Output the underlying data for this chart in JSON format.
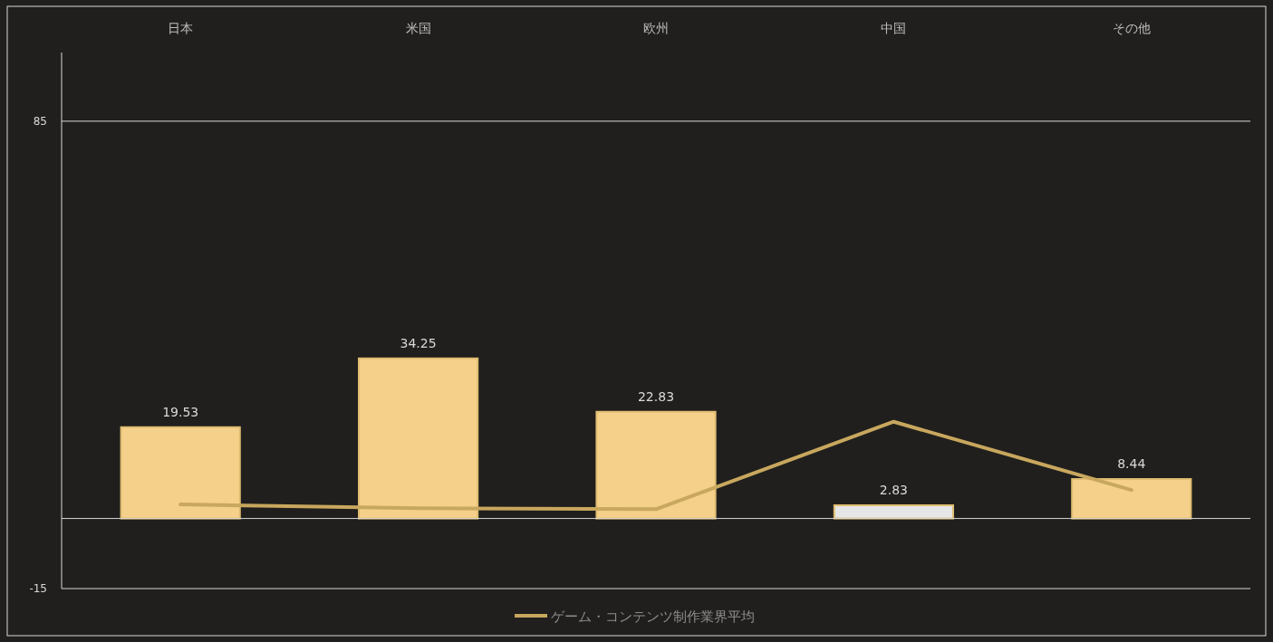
{
  "chart_data": {
    "type": "bar",
    "categories": [
      "日本",
      "米国",
      "欧州",
      "中国",
      "その他"
    ],
    "ylim": [
      -15,
      99.7
    ],
    "yticks": [
      -15,
      85
    ],
    "grid": "y",
    "legend": "bottom",
    "series": [
      {
        "colors": [
          "#f5d08a",
          "#f5d08a",
          "#f5d08a",
          "#e6e6e6",
          "#f5d08a"
        ],
        "values": [
          19.53,
          34.25,
          22.83,
          2.83,
          8.44
        ],
        "value_labels": [
          "19.53",
          "34.25",
          "22.83",
          "2.83",
          "8.44"
        ]
      },
      {
        "type": "line",
        "name": "ゲーム・コンテンツ制作業界平均",
        "color": "#c8a75e",
        "values": [
          3.0,
          2.2,
          2.0,
          20.7,
          6.1
        ],
        "line_style": "solid",
        "marker": "none"
      }
    ]
  }
}
